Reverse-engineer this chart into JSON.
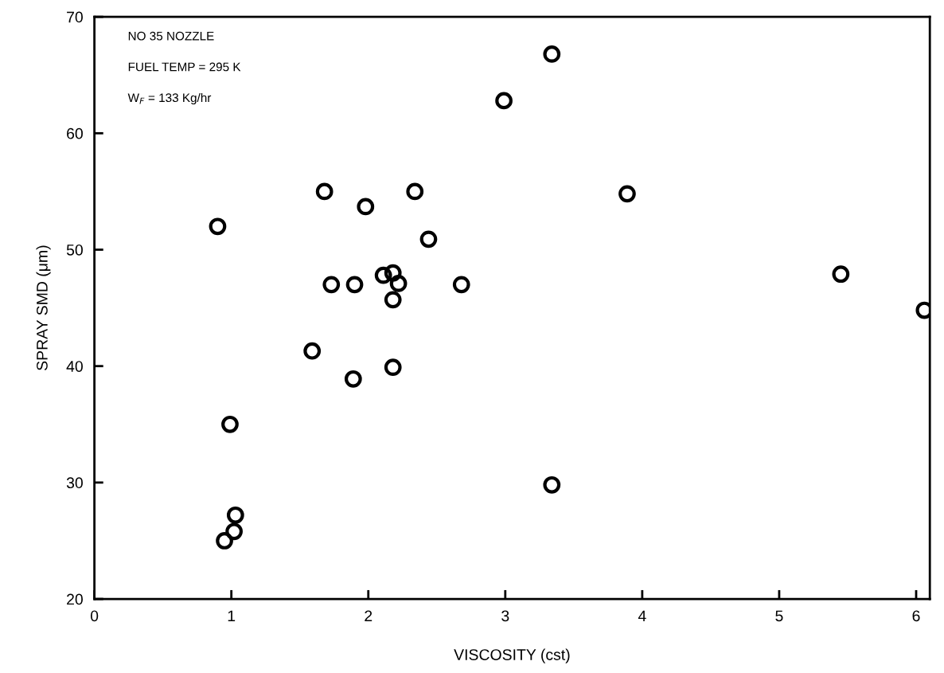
{
  "chart_data": {
    "type": "scatter",
    "xlabel": "VISCOSITY (cst)",
    "ylabel": "SPRAY SMD (μm)",
    "annotations": [
      "NO 35 NOZZLE",
      "FUEL TEMP = 295 K",
      "W$_{F}$ = 133 Kg/hr"
    ],
    "x": [
      0.9,
      0.95,
      1.02,
      1.03,
      0.99,
      1.68,
      1.73,
      1.9,
      1.59,
      1.89,
      1.98,
      2.11,
      2.18,
      2.22,
      2.18,
      2.18,
      2.34,
      2.44,
      2.68,
      2.99,
      3.34,
      3.34,
      3.89,
      5.45,
      6.06
    ],
    "series": [
      {
        "color": "#000000",
        "values": [
          52,
          25,
          25.8,
          27.2,
          35,
          55,
          47,
          47,
          41.3,
          38.9,
          53.7,
          47.8,
          48,
          47.1,
          45.7,
          39.9,
          55,
          50.9,
          47,
          62.8,
          66.8,
          29.8,
          54.8,
          47.9,
          44.8
        ]
      }
    ],
    "marker": "circle",
    "grid": false,
    "legend": false,
    "xlim": [
      0,
      6.1
    ],
    "xticks": [
      0,
      1,
      2,
      3,
      4,
      5,
      6
    ],
    "ylim": [
      20,
      70
    ],
    "yticks": [
      20,
      30,
      40,
      50,
      60,
      70
    ]
  }
}
